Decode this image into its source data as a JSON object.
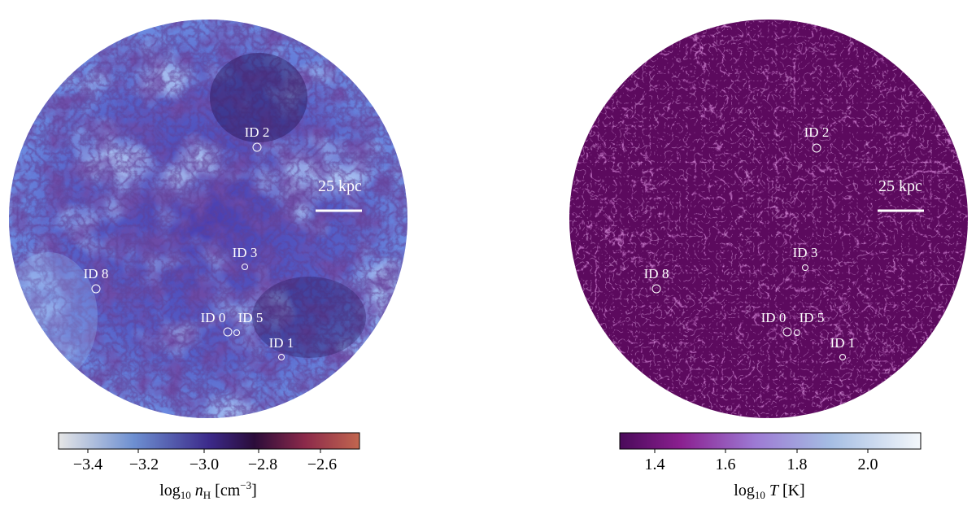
{
  "panels": [
    {
      "id": "density",
      "scale_bar_label": "25 kpc",
      "markers": [
        {
          "label": "ID 2"
        },
        {
          "label": "ID 3"
        },
        {
          "label": "ID 8"
        },
        {
          "label": "ID 0"
        },
        {
          "label": "ID 5"
        },
        {
          "label": "ID 1"
        }
      ],
      "colorbar": {
        "ticks": [
          "−3.4",
          "−3.2",
          "−3.0",
          "−2.8",
          "−2.6"
        ],
        "label_prefix": "log",
        "label_sub": "10",
        "label_var": "n",
        "label_var_sub": "H",
        "label_units": "[cm",
        "label_exp": "−3",
        "label_close": "]",
        "colors": [
          "#e6e6e6",
          "#6d8fd1",
          "#3c2a8a",
          "#2b0c3a",
          "#8c2a4a",
          "#c2664f"
        ]
      },
      "field_colors": [
        "#6f86e0",
        "#4a3ea8",
        "#2f1f76"
      ]
    },
    {
      "id": "temperature",
      "scale_bar_label": "25 kpc",
      "markers": [
        {
          "label": "ID 2"
        },
        {
          "label": "ID 3"
        },
        {
          "label": "ID 8"
        },
        {
          "label": "ID 0"
        },
        {
          "label": "ID 5"
        },
        {
          "label": "ID 1"
        }
      ],
      "colorbar": {
        "ticks": [
          "1.4",
          "1.6",
          "1.8",
          "2.0"
        ],
        "label_prefix": "log",
        "label_sub": "10",
        "label_var": "T",
        "label_units": "[K]",
        "colors": [
          "#4a0a5a",
          "#8a1f8f",
          "#9d7ad4",
          "#a5bde3",
          "#f3f7fb"
        ]
      },
      "field_colors": [
        "#5a0b5f",
        "#c24fc8"
      ]
    }
  ]
}
